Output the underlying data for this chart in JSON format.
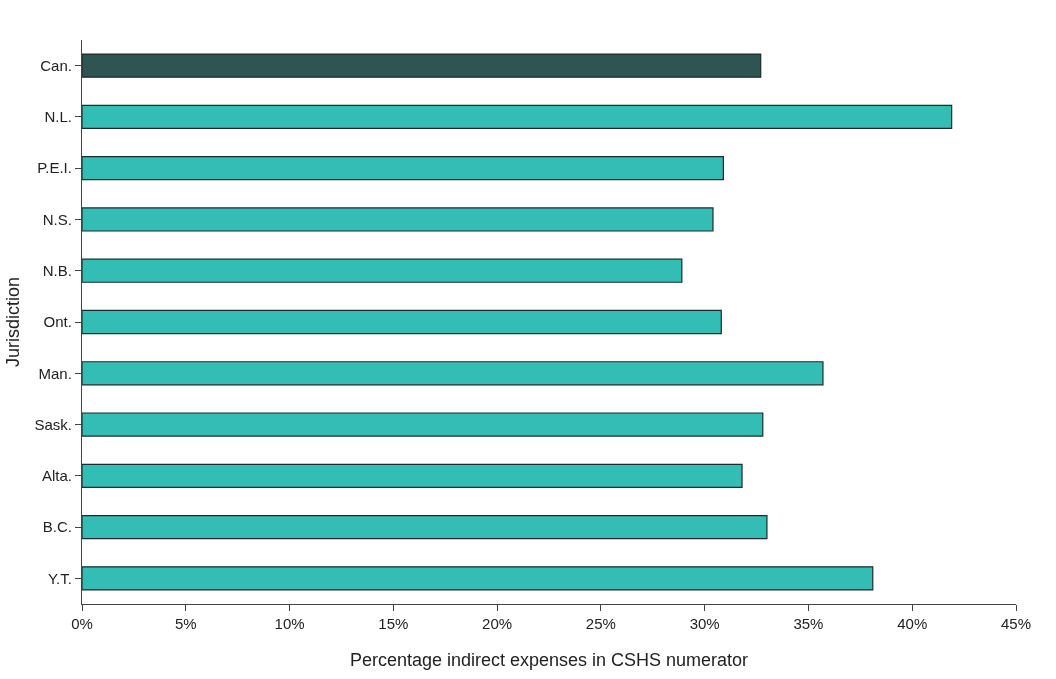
{
  "chart_data": {
    "type": "bar",
    "orientation": "horizontal",
    "xlabel": "Percentage indirect expenses in CSHS numerator",
    "ylabel": "Jurisdiction",
    "categories": [
      "Can.",
      "N.L.",
      "P.E.I.",
      "N.S.",
      "N.B.",
      "Ont.",
      "Man.",
      "Sask.",
      "Alta.",
      "B.C.",
      "Y.T."
    ],
    "values": [
      32.7,
      41.9,
      30.9,
      30.4,
      28.9,
      30.8,
      35.7,
      32.8,
      31.8,
      33.0,
      38.1
    ],
    "colors": [
      "#2f5552",
      "#33bdb5",
      "#33bdb5",
      "#33bdb5",
      "#33bdb5",
      "#33bdb5",
      "#33bdb5",
      "#33bdb5",
      "#33bdb5",
      "#33bdb5",
      "#33bdb5"
    ],
    "xlim": [
      0,
      45
    ],
    "xticks": [
      {
        "value": 0,
        "label": "0%"
      },
      {
        "value": 5,
        "label": "5%"
      },
      {
        "value": 10,
        "label": "10%"
      },
      {
        "value": 15,
        "label": "15%"
      },
      {
        "value": 20,
        "label": "20%"
      },
      {
        "value": 25,
        "label": "25%"
      },
      {
        "value": 30,
        "label": "30%"
      },
      {
        "value": 35,
        "label": "35%"
      },
      {
        "value": 40,
        "label": "40%"
      },
      {
        "value": 45,
        "label": "45%"
      }
    ]
  }
}
